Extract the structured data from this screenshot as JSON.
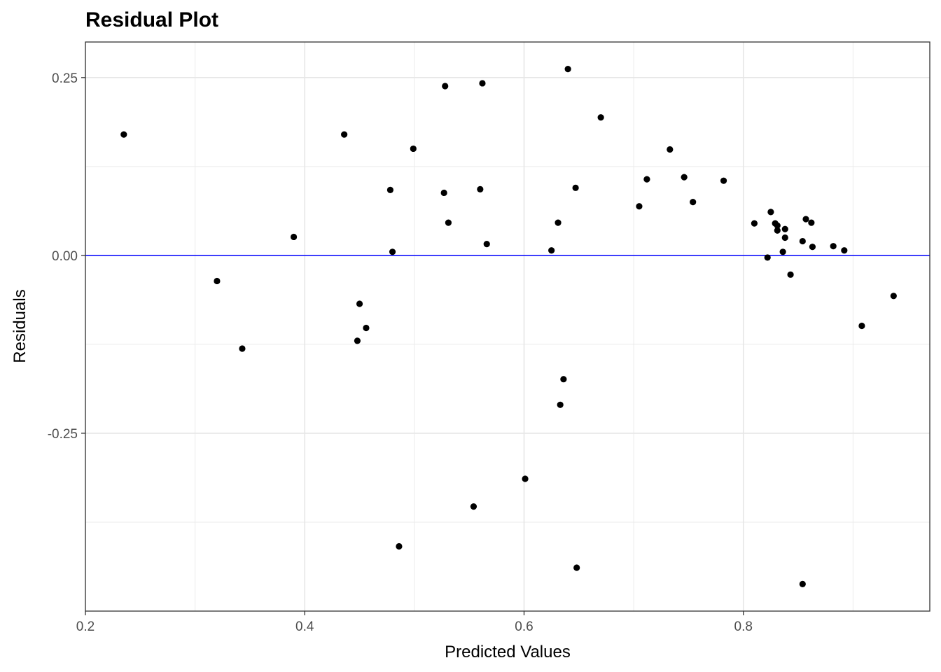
{
  "chart_data": {
    "type": "scatter",
    "title": "Residual Plot",
    "xlabel": "Predicted Values",
    "ylabel": "Residuals",
    "xlim": [
      0.2,
      0.97
    ],
    "ylim": [
      -0.5,
      0.3
    ],
    "x_ticks": [
      0.2,
      0.4,
      0.6,
      0.8
    ],
    "x_tick_labels": [
      "0.2",
      "0.4",
      "0.6",
      "0.8"
    ],
    "y_ticks": [
      0.25,
      0.0,
      -0.25
    ],
    "y_tick_labels": [
      "0.25",
      "0.00",
      "-0.25"
    ],
    "x_minor_ticks": [
      0.3,
      0.5,
      0.7,
      0.9
    ],
    "y_minor_ticks": [
      0.125,
      -0.125,
      -0.375
    ],
    "grid": true,
    "reference_line": {
      "y": 0,
      "color": "#0000ff"
    },
    "point_color": "#000000",
    "points": [
      {
        "x": 0.235,
        "y": 0.17
      },
      {
        "x": 0.32,
        "y": -0.036
      },
      {
        "x": 0.343,
        "y": -0.131
      },
      {
        "x": 0.39,
        "y": 0.026
      },
      {
        "x": 0.436,
        "y": 0.17
      },
      {
        "x": 0.448,
        "y": -0.12
      },
      {
        "x": 0.45,
        "y": -0.068
      },
      {
        "x": 0.456,
        "y": -0.102
      },
      {
        "x": 0.478,
        "y": 0.092
      },
      {
        "x": 0.48,
        "y": 0.005
      },
      {
        "x": 0.486,
        "y": -0.409
      },
      {
        "x": 0.499,
        "y": 0.15
      },
      {
        "x": 0.527,
        "y": 0.088
      },
      {
        "x": 0.528,
        "y": 0.238
      },
      {
        "x": 0.531,
        "y": 0.046
      },
      {
        "x": 0.554,
        "y": -0.353
      },
      {
        "x": 0.56,
        "y": 0.093
      },
      {
        "x": 0.562,
        "y": 0.242
      },
      {
        "x": 0.566,
        "y": 0.016
      },
      {
        "x": 0.601,
        "y": -0.314
      },
      {
        "x": 0.625,
        "y": 0.007
      },
      {
        "x": 0.631,
        "y": 0.046
      },
      {
        "x": 0.633,
        "y": -0.21
      },
      {
        "x": 0.636,
        "y": -0.174
      },
      {
        "x": 0.64,
        "y": 0.262
      },
      {
        "x": 0.647,
        "y": 0.095
      },
      {
        "x": 0.648,
        "y": -0.439
      },
      {
        "x": 0.67,
        "y": 0.194
      },
      {
        "x": 0.705,
        "y": 0.069
      },
      {
        "x": 0.712,
        "y": 0.107
      },
      {
        "x": 0.733,
        "y": 0.149
      },
      {
        "x": 0.746,
        "y": 0.11
      },
      {
        "x": 0.754,
        "y": 0.075
      },
      {
        "x": 0.782,
        "y": 0.105
      },
      {
        "x": 0.81,
        "y": 0.045
      },
      {
        "x": 0.822,
        "y": -0.003
      },
      {
        "x": 0.825,
        "y": 0.061
      },
      {
        "x": 0.829,
        "y": 0.045
      },
      {
        "x": 0.831,
        "y": 0.042
      },
      {
        "x": 0.831,
        "y": 0.035
      },
      {
        "x": 0.836,
        "y": 0.005
      },
      {
        "x": 0.838,
        "y": 0.037
      },
      {
        "x": 0.838,
        "y": 0.025
      },
      {
        "x": 0.843,
        "y": -0.027
      },
      {
        "x": 0.854,
        "y": -0.462
      },
      {
        "x": 0.854,
        "y": 0.02
      },
      {
        "x": 0.857,
        "y": 0.051
      },
      {
        "x": 0.862,
        "y": 0.046
      },
      {
        "x": 0.863,
        "y": 0.012
      },
      {
        "x": 0.882,
        "y": 0.013
      },
      {
        "x": 0.892,
        "y": 0.007
      },
      {
        "x": 0.908,
        "y": -0.099
      },
      {
        "x": 0.937,
        "y": -0.057
      }
    ]
  }
}
